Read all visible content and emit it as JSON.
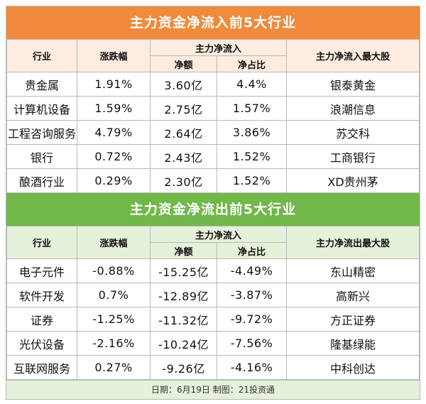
{
  "inflow": {
    "title": "主力资金净流入前5大行业",
    "headers": {
      "industry": "行业",
      "change": "涨跌幅",
      "main": "主力净流入",
      "amount": "净额",
      "ratio": "净占比",
      "top_stock": "主力净流入最大股"
    },
    "rows": [
      {
        "industry": "贵金属",
        "change": "1.91%",
        "amount": "3.60亿",
        "ratio": "4.4%",
        "stock": "银泰黄金"
      },
      {
        "industry": "计算机设备",
        "change": "1.59%",
        "amount": "2.75亿",
        "ratio": "1.57%",
        "stock": "浪潮信息"
      },
      {
        "industry": "工程咨询服务",
        "change": "4.79%",
        "amount": "2.64亿",
        "ratio": "3.86%",
        "stock": "苏交科"
      },
      {
        "industry": "银行",
        "change": "0.72%",
        "amount": "2.43亿",
        "ratio": "1.52%",
        "stock": "工商银行"
      },
      {
        "industry": "酿酒行业",
        "change": "0.29%",
        "amount": "2.30亿",
        "ratio": "1.52%",
        "stock": "XD贵州茅"
      }
    ]
  },
  "outflow": {
    "title": "主力资金净流出前5大行业",
    "headers": {
      "industry": "行业",
      "change": "涨跌幅",
      "main": "主力净流入",
      "amount": "净额",
      "ratio": "净占比",
      "top_stock": "主力净流出最大股"
    },
    "rows": [
      {
        "industry": "电子元件",
        "change": "-0.88%",
        "amount": "-15.25亿",
        "ratio": "-4.49%",
        "stock": "东山精密"
      },
      {
        "industry": "软件开发",
        "change": "0.7%",
        "amount": "-12.89亿",
        "ratio": "-3.87%",
        "stock": "高新兴"
      },
      {
        "industry": "证券",
        "change": "-1.25%",
        "amount": "-11.32亿",
        "ratio": "-9.72%",
        "stock": "方正证券"
      },
      {
        "industry": "光伏设备",
        "change": "-2.16%",
        "amount": "-10.24亿",
        "ratio": "-7.56%",
        "stock": "隆基绿能"
      },
      {
        "industry": "互联网服务",
        "change": "0.27%",
        "amount": "-9.26亿",
        "ratio": "-4.16%",
        "stock": "中科创达"
      }
    ]
  },
  "footer": "日期：6月19日 制图：21投资通",
  "colors": {
    "inflow_title_bg": "#f08a3c",
    "inflow_header_bg": "#fdecdf",
    "outflow_title_bg": "#72b74a",
    "outflow_header_bg": "#e5f1da"
  }
}
